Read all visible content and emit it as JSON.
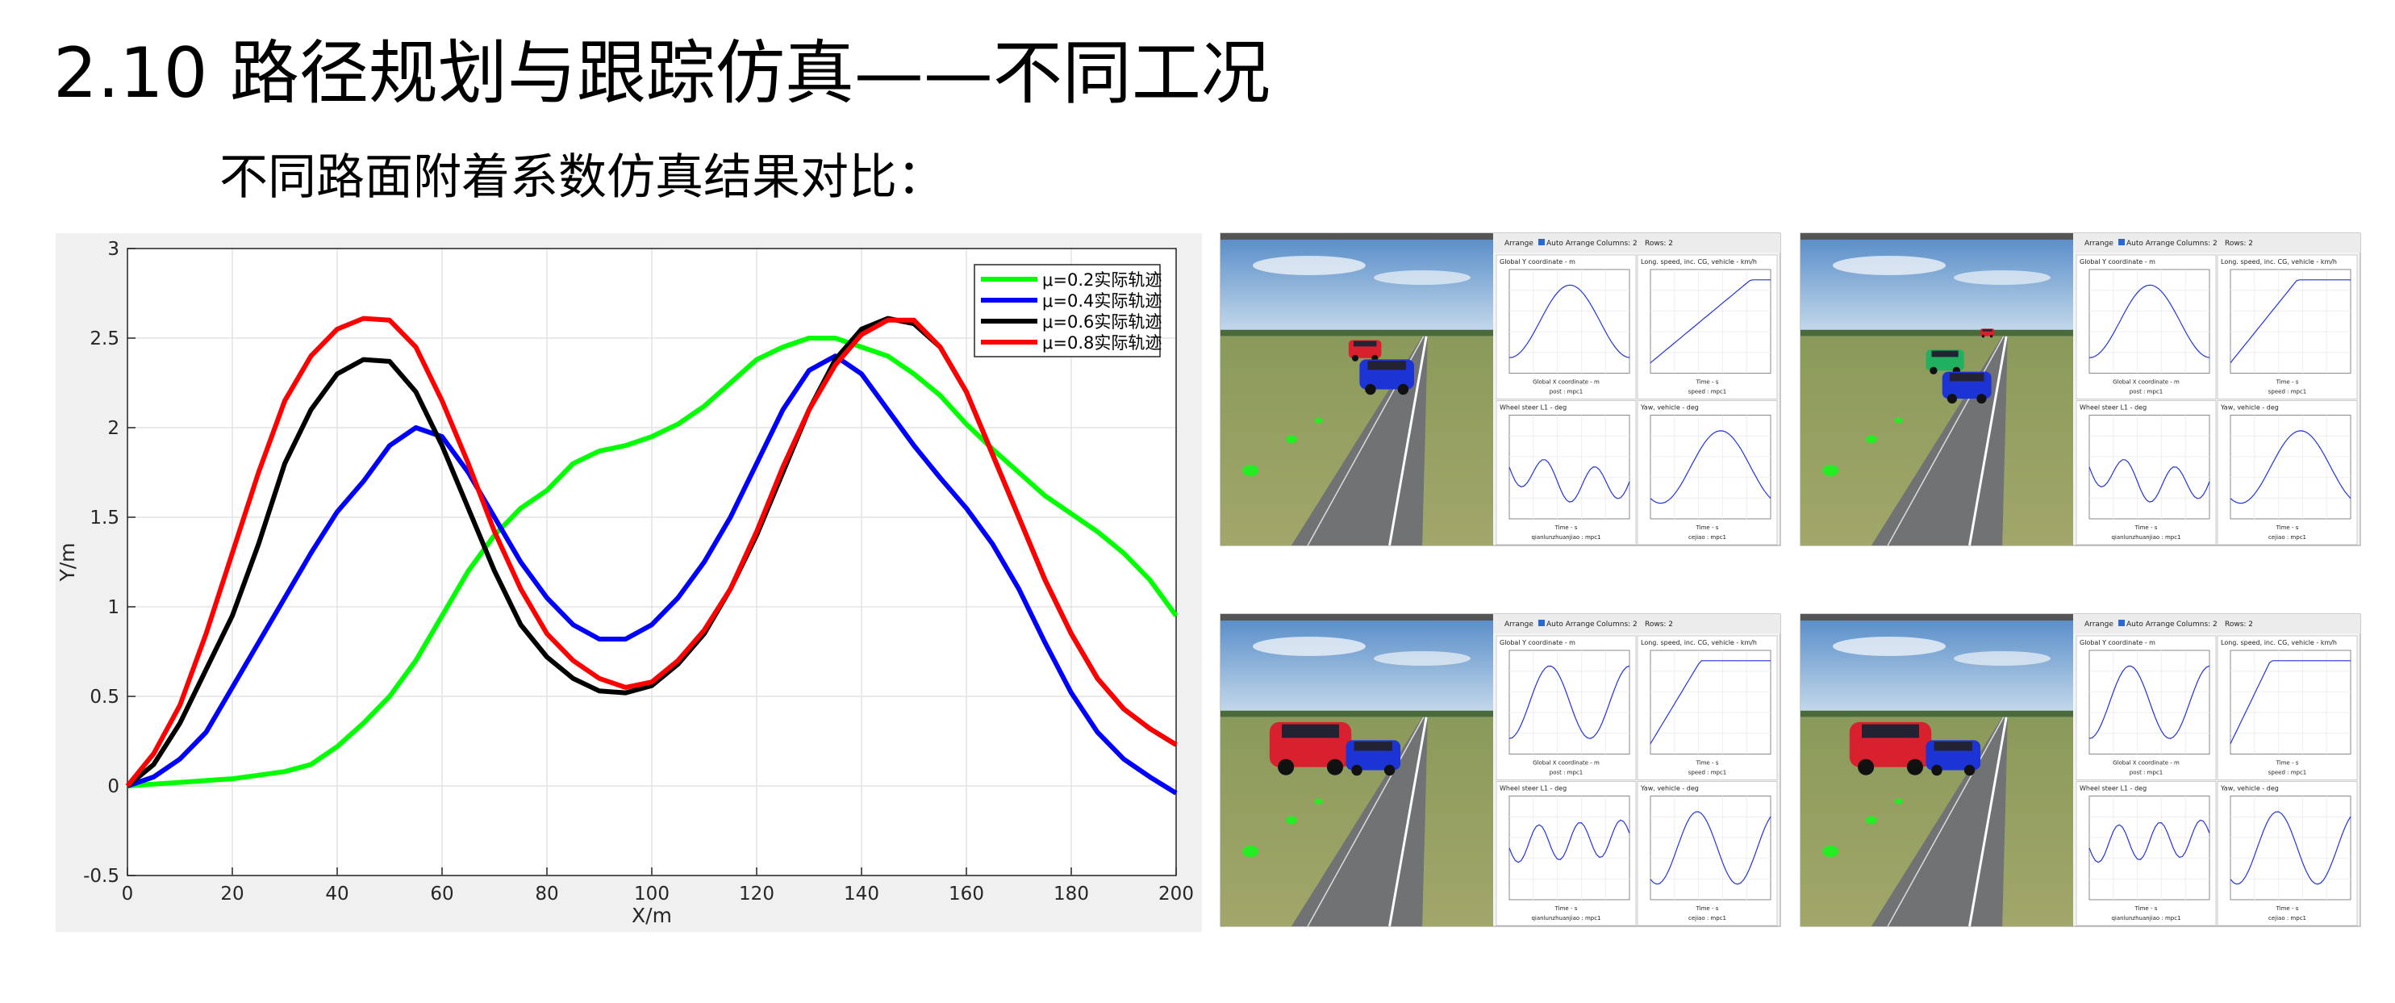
{
  "slide": {
    "title": "2.10 路径规划与跟踪仿真——不同工况",
    "subtitle": "不同路面附着系数仿真结果对比："
  },
  "chart_data": {
    "type": "line",
    "xlabel": "X/m",
    "ylabel": "Y/m",
    "x": [
      0,
      5,
      10,
      15,
      20,
      25,
      30,
      35,
      40,
      45,
      50,
      55,
      60,
      65,
      70,
      75,
      80,
      85,
      90,
      95,
      100,
      105,
      110,
      115,
      120,
      125,
      130,
      135,
      140,
      145,
      150,
      155,
      160,
      165,
      170,
      175,
      180,
      185,
      190,
      195,
      200
    ],
    "series": [
      {
        "name": "μ=0.2实际轨迹",
        "color": "#00ff00",
        "values": [
          0,
          0.01,
          0.02,
          0.03,
          0.04,
          0.06,
          0.08,
          0.12,
          0.22,
          0.35,
          0.5,
          0.7,
          0.95,
          1.2,
          1.4,
          1.55,
          1.65,
          1.8,
          1.87,
          1.9,
          1.95,
          2.02,
          2.12,
          2.25,
          2.38,
          2.45,
          2.5,
          2.5,
          2.45,
          2.4,
          2.3,
          2.18,
          2.02,
          1.88,
          1.75,
          1.62,
          1.52,
          1.42,
          1.3,
          1.15,
          0.95
        ]
      },
      {
        "name": "μ=0.4实际轨迹",
        "color": "#0000ff",
        "values": [
          0,
          0.05,
          0.15,
          0.3,
          0.55,
          0.8,
          1.05,
          1.3,
          1.53,
          1.7,
          1.9,
          2.0,
          1.95,
          1.75,
          1.5,
          1.25,
          1.05,
          0.9,
          0.82,
          0.82,
          0.9,
          1.05,
          1.25,
          1.5,
          1.8,
          2.1,
          2.32,
          2.4,
          2.3,
          2.1,
          1.9,
          1.72,
          1.55,
          1.35,
          1.1,
          0.8,
          0.52,
          0.3,
          0.15,
          0.05,
          -0.04
        ]
      },
      {
        "name": "μ=0.6实际轨迹",
        "color": "#000000",
        "values": [
          0,
          0.12,
          0.35,
          0.65,
          0.95,
          1.35,
          1.8,
          2.1,
          2.3,
          2.38,
          2.37,
          2.2,
          1.9,
          1.55,
          1.2,
          0.9,
          0.72,
          0.6,
          0.53,
          0.52,
          0.56,
          0.68,
          0.85,
          1.1,
          1.4,
          1.75,
          2.1,
          2.38,
          2.55,
          2.61,
          2.58,
          2.45,
          2.2,
          1.85,
          1.5,
          1.15,
          0.85,
          0.6,
          0.43,
          0.32,
          0.23
        ]
      },
      {
        "name": "μ=0.8实际轨迹",
        "color": "#ff0000",
        "values": [
          0,
          0.18,
          0.45,
          0.85,
          1.3,
          1.75,
          2.15,
          2.4,
          2.55,
          2.61,
          2.6,
          2.45,
          2.15,
          1.8,
          1.42,
          1.1,
          0.85,
          0.7,
          0.6,
          0.55,
          0.58,
          0.7,
          0.87,
          1.1,
          1.42,
          1.78,
          2.1,
          2.35,
          2.52,
          2.6,
          2.6,
          2.45,
          2.2,
          1.85,
          1.5,
          1.15,
          0.85,
          0.6,
          0.43,
          0.32,
          0.23
        ]
      }
    ],
    "xlim": [
      0,
      200
    ],
    "xticks": [
      0,
      20,
      40,
      60,
      80,
      100,
      120,
      140,
      160,
      180,
      200
    ],
    "ylim": [
      -0.5,
      3
    ],
    "yticks": [
      -0.5,
      0,
      0.5,
      1,
      1.5,
      2,
      2.5,
      3
    ],
    "grid": true,
    "legend": "upper right"
  },
  "screenshots": [
    {
      "toolbar": [
        "Arrange",
        "Auto Arrange",
        "Columns: 2",
        "Rows: 2"
      ],
      "plots": [
        {
          "title": "Global Y coordinate - m",
          "xlabel": "Global X coordinate - m",
          "caption": "post : mpc1"
        },
        {
          "title": "Long. speed, inc. CG, vehicle - km/h",
          "xlabel": "Time - s",
          "caption": "speed : mpc1"
        },
        {
          "title": "Wheel steer L1 - deg",
          "xlabel": "Time - s",
          "caption": "qianlunzhuanjiao : mpc1"
        },
        {
          "title": "Yaw, vehicle - deg",
          "xlabel": "Time - s",
          "caption": "cejiao : mpc1"
        }
      ]
    },
    {
      "toolbar": [
        "Arrange",
        "Auto Arrange",
        "Columns: 2",
        "Rows: 2"
      ],
      "plots": [
        {
          "title": "Global Y coordinate - m",
          "xlabel": "Global X coordinate - m",
          "caption": "post : mpc1"
        },
        {
          "title": "Long. speed, inc. CG, vehicle - km/h",
          "xlabel": "Time - s",
          "caption": "speed : mpc1"
        },
        {
          "title": "Wheel steer L1 - deg",
          "xlabel": "Time - s",
          "caption": "qianlunzhuanjiao : mpc1"
        },
        {
          "title": "Yaw, vehicle - deg",
          "xlabel": "Time - s",
          "caption": "cejiao : mpc1"
        }
      ]
    },
    {
      "toolbar": [
        "Arrange",
        "Auto Arrange",
        "Columns: 2",
        "Rows: 2"
      ],
      "plots": [
        {
          "title": "Global Y coordinate - m",
          "xlabel": "Global X coordinate - m",
          "caption": "post : mpc1"
        },
        {
          "title": "Long. speed, inc. CG, vehicle - km/h",
          "xlabel": "Time - s",
          "caption": "speed : mpc1"
        },
        {
          "title": "Wheel steer L1 - deg",
          "xlabel": "Time - s",
          "caption": "qianlunzhuanjiao : mpc1"
        },
        {
          "title": "Yaw, vehicle - deg",
          "xlabel": "Time - s",
          "caption": "cejiao : mpc1"
        }
      ]
    },
    {
      "toolbar": [
        "Arrange",
        "Auto Arrange",
        "Columns: 2",
        "Rows: 2"
      ],
      "plots": [
        {
          "title": "Global Y coordinate - m",
          "xlabel": "Global X coordinate - m",
          "caption": "post : mpc1"
        },
        {
          "title": "Long. speed, inc. CG, vehicle - km/h",
          "xlabel": "Time - s",
          "caption": "speed : mpc1"
        },
        {
          "title": "Wheel steer L1 - deg",
          "xlabel": "Time - s",
          "caption": "qianlunzhuanjiao : mpc1"
        },
        {
          "title": "Yaw, vehicle - deg",
          "xlabel": "Time - s",
          "caption": "cejiao : mpc1"
        }
      ]
    }
  ]
}
